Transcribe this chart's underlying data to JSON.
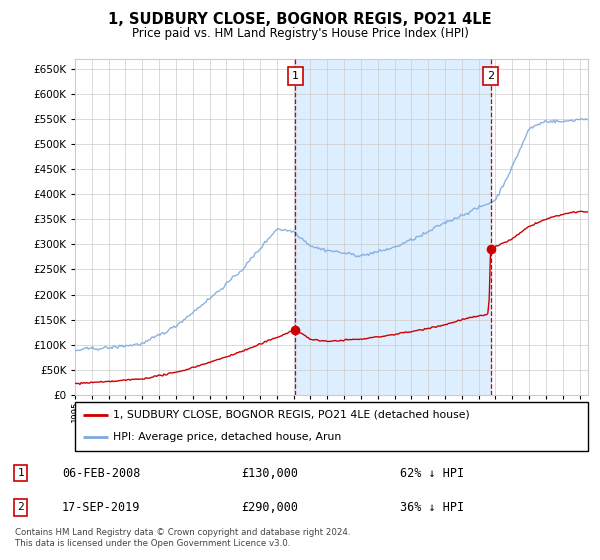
{
  "title": "1, SUDBURY CLOSE, BOGNOR REGIS, PO21 4LE",
  "subtitle": "Price paid vs. HM Land Registry's House Price Index (HPI)",
  "ylabel_ticks": [
    0,
    50000,
    100000,
    150000,
    200000,
    250000,
    300000,
    350000,
    400000,
    450000,
    500000,
    550000,
    600000,
    650000
  ],
  "ylim": [
    0,
    670000
  ],
  "xlim_start": 1995.0,
  "xlim_end": 2025.5,
  "sale1_date": 2008.09,
  "sale1_price": 130000,
  "sale1_label": "06-FEB-2008",
  "sale1_pct": "62% ↓ HPI",
  "sale2_date": 2019.71,
  "sale2_price": 290000,
  "sale2_label": "17-SEP-2019",
  "sale2_pct": "36% ↓ HPI",
  "legend_property": "1, SUDBURY CLOSE, BOGNOR REGIS, PO21 4LE (detached house)",
  "legend_hpi": "HPI: Average price, detached house, Arun",
  "footnote": "Contains HM Land Registry data © Crown copyright and database right 2024.\nThis data is licensed under the Open Government Licence v3.0.",
  "line_color_property": "#cc0000",
  "line_color_hpi": "#7faadd",
  "shade_color": "#ddeeff",
  "grid_color": "#cccccc",
  "plot_bg": "#ffffff"
}
